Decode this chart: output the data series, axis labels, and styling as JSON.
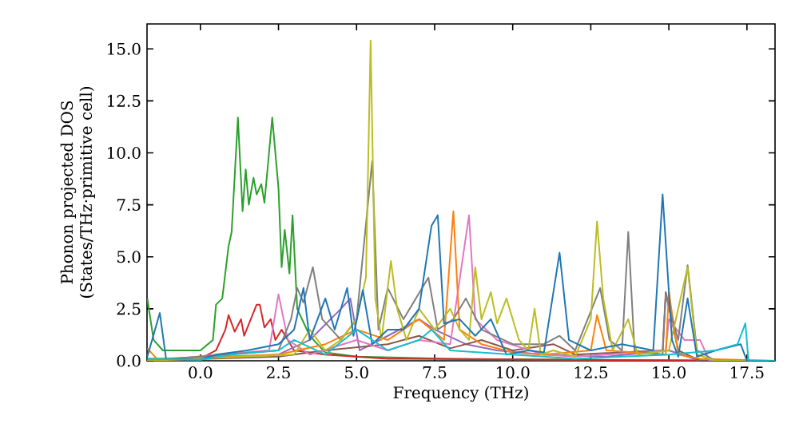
{
  "chart_data": {
    "type": "line",
    "xlabel": "Frequency (THz)",
    "ylabel": "Phonon projected DOS\n(States/THz·primitive cell)",
    "xlim": [
      -1.71,
      18.4
    ],
    "ylim": [
      0,
      16.2
    ],
    "xticks": [
      {
        "value": 0,
        "label": "0.0"
      },
      2.5,
      {
        "value": 5,
        "label": "5.0"
      },
      7.5,
      {
        "value": 10,
        "label": "10.0"
      },
      12.5,
      {
        "value": 15,
        "label": "15.0"
      },
      17.5
    ],
    "yticks": [
      {
        "value": 0,
        "label": "0.0"
      },
      2.5,
      {
        "value": 5,
        "label": "5.0"
      },
      7.5,
      {
        "value": 10,
        "label": "10.0"
      },
      12.5,
      {
        "value": 15,
        "label": "15.0"
      }
    ],
    "grid": false,
    "marker": "none",
    "line_style": "solid",
    "series": [
      {
        "color": "#2ca02c",
        "x": [
          -1.7,
          -1.5,
          -1.2,
          -0.5,
          0,
          0.4,
          0.5,
          0.7,
          0.9,
          1.0,
          1.2,
          1.35,
          1.45,
          1.55,
          1.7,
          1.8,
          1.95,
          2.05,
          2.3,
          2.5,
          2.6,
          2.7,
          2.85,
          2.95,
          3.1,
          3.5,
          4.0,
          5,
          8,
          12,
          18.4
        ],
        "values": [
          3.0,
          1.0,
          0.5,
          0.5,
          0.5,
          1.0,
          2.7,
          3.0,
          5.5,
          6.2,
          11.7,
          7.2,
          9.2,
          7.5,
          8.8,
          8.0,
          8.5,
          7.6,
          11.7,
          8.3,
          4.5,
          6.3,
          4.2,
          7.0,
          2.5,
          1.2,
          0.4,
          0.2,
          0.1,
          0.05,
          0
        ]
      },
      {
        "color": "#d62728",
        "x": [
          -1.7,
          0,
          0.5,
          0.8,
          0.9,
          1.1,
          1.3,
          1.4,
          1.8,
          1.9,
          2.05,
          2.25,
          2.4,
          2.6,
          3.0,
          4,
          6,
          18.4
        ],
        "values": [
          0.1,
          0.1,
          0.5,
          1.5,
          2.2,
          1.4,
          2.0,
          1.2,
          2.7,
          2.7,
          1.6,
          2.0,
          1.0,
          1.5,
          0.5,
          0.3,
          0.1,
          0
        ]
      },
      {
        "color": "#9467bd",
        "x": [
          -1.7,
          2.5,
          3.5,
          4.5,
          4.8,
          5.1,
          6,
          7,
          7.5,
          8.5,
          9.5,
          11,
          13,
          15,
          16,
          18.4
        ],
        "values": [
          0,
          0.3,
          1.0,
          2.5,
          3.0,
          0.5,
          1.2,
          2.0,
          1.5,
          0.8,
          0.5,
          0.3,
          0.2,
          0.5,
          0,
          0
        ]
      },
      {
        "color": "#8c564b",
        "x": [
          -1.7,
          2.5,
          4,
          6,
          7,
          8,
          9,
          10,
          11.3,
          12,
          14.8,
          14.9,
          15.3,
          16,
          18.4
        ],
        "values": [
          0,
          0.2,
          0.5,
          0.8,
          1.2,
          0.6,
          1.0,
          0.5,
          0.8,
          0.3,
          0.5,
          3.3,
          0.5,
          0,
          0
        ]
      },
      {
        "color": "#e377c2",
        "x": [
          -1.7,
          2.2,
          2.5,
          2.8,
          3.5,
          5,
          6,
          7,
          8.0,
          8.6,
          8.8,
          9.5,
          11,
          12,
          14.9,
          15.0,
          15.5,
          16.0,
          16.3,
          18.4
        ],
        "values": [
          0,
          0.5,
          3.2,
          1.0,
          0.3,
          1.0,
          0.5,
          1.0,
          0.8,
          7.0,
          2.0,
          1.0,
          0.3,
          0.2,
          0.5,
          2.0,
          1.0,
          1.0,
          0,
          0
        ]
      },
      {
        "color": "#ff7f0e",
        "x": [
          -1.7,
          -1.4,
          2.5,
          4,
          5,
          6,
          7,
          7.8,
          8.1,
          8.3,
          9,
          10,
          11,
          12.5,
          12.7,
          13,
          14.9,
          15.0,
          15.3,
          16,
          18.4
        ],
        "values": [
          0.6,
          0.1,
          0.3,
          0.8,
          1.5,
          1.0,
          2.0,
          1.0,
          7.2,
          1.5,
          0.8,
          0.4,
          0.3,
          0.5,
          2.2,
          0.5,
          0.3,
          3.3,
          0.3,
          0.1,
          0
        ]
      },
      {
        "color": "#7f7f7f",
        "x": [
          -1.7,
          2.5,
          2.9,
          3.1,
          3.3,
          3.6,
          3.9,
          4.5,
          5.0,
          5.5,
          5.7,
          6.0,
          6.5,
          7.3,
          7.6,
          8.1,
          8.5,
          9.0,
          10,
          11,
          11.5,
          12,
          12.8,
          13.1,
          13.5,
          13.7,
          13.9,
          14.8,
          14.9,
          15.3,
          15.6,
          15.9,
          16.5,
          18.4
        ],
        "values": [
          0,
          0.5,
          2.0,
          3.5,
          2.8,
          4.5,
          2.0,
          1.0,
          2.0,
          9.6,
          1.5,
          3.5,
          2.0,
          4.0,
          1.5,
          2.0,
          3.0,
          1.5,
          0.8,
          0.8,
          1.2,
          0.5,
          3.5,
          1.0,
          0.5,
          6.2,
          0.5,
          0.3,
          3.2,
          1.0,
          4.6,
          0.5,
          0,
          0
        ]
      },
      {
        "color": "#bcbd22",
        "x": [
          -1.7,
          3.0,
          3.5,
          4.0,
          4.5,
          5.0,
          5.3,
          5.45,
          5.6,
          5.8,
          6.1,
          6.3,
          6.6,
          7.0,
          7.5,
          8.0,
          8.3,
          8.6,
          8.8,
          9.0,
          9.3,
          9.5,
          9.8,
          10.2,
          10.5,
          10.7,
          10.9,
          11.3,
          12.0,
          12.5,
          12.7,
          12.9,
          13.2,
          13.7,
          14.0,
          15.0,
          15.6,
          15.9,
          16.5,
          18.4
        ],
        "values": [
          0,
          0.3,
          1.5,
          0.5,
          1.0,
          2.0,
          4.0,
          15.4,
          3.0,
          1.0,
          4.8,
          2.5,
          1.0,
          2.5,
          1.5,
          2.5,
          1.5,
          1.0,
          4.5,
          2.0,
          3.3,
          1.8,
          3.0,
          1.0,
          0.5,
          2.5,
          0.3,
          0.5,
          0.2,
          2.0,
          6.7,
          3.0,
          0.5,
          2.0,
          0.3,
          0.5,
          4.5,
          0.3,
          0,
          0
        ]
      },
      {
        "color": "#1f77b4",
        "x": [
          -1.7,
          -1.3,
          -1.1,
          0,
          0.5,
          1.5,
          2.5,
          3.0,
          3.3,
          3.5,
          4.0,
          4.3,
          4.7,
          4.9,
          5.2,
          5.5,
          6.0,
          6.5,
          7.0,
          7.4,
          7.6,
          7.8,
          8.3,
          8.8,
          9.3,
          9.8,
          10.5,
          11.0,
          11.5,
          11.8,
          12.5,
          13.5,
          14.5,
          14.8,
          15.1,
          15.3,
          15.6,
          15.9,
          16.5,
          17.3,
          17.5,
          18.4
        ],
        "values": [
          0.2,
          2.3,
          0.1,
          0.05,
          0.3,
          0.5,
          0.8,
          1.5,
          3.5,
          1.0,
          3.0,
          1.5,
          3.5,
          1.2,
          3.4,
          0.8,
          1.5,
          1.5,
          2.5,
          6.5,
          7.0,
          1.8,
          2.0,
          1.2,
          2.0,
          0.3,
          0.5,
          0.4,
          5.2,
          1.0,
          0.5,
          0.8,
          0.5,
          8.0,
          1.0,
          0.2,
          3.0,
          0.2,
          0.5,
          0.8,
          0,
          0
        ]
      },
      {
        "color": "#17becf",
        "x": [
          -1.7,
          0,
          1,
          2.5,
          3,
          4,
          5,
          6,
          7,
          7.4,
          8,
          10,
          11,
          12,
          15.0,
          16.5,
          17.2,
          17.45,
          17.55,
          18.4
        ],
        "values": [
          0.1,
          0.05,
          0.3,
          0.5,
          1.0,
          0.3,
          1.5,
          0.5,
          1.0,
          1.5,
          0.5,
          0.3,
          0.2,
          0.1,
          0.3,
          0.5,
          0.8,
          1.8,
          0,
          0
        ]
      }
    ]
  }
}
